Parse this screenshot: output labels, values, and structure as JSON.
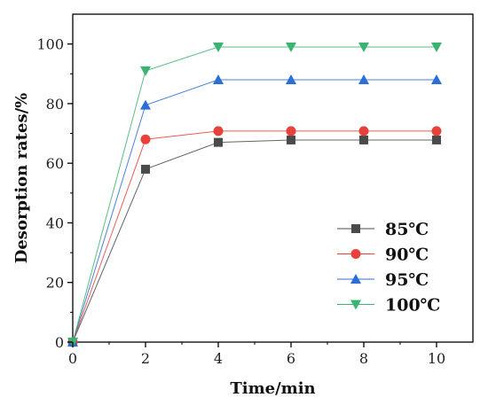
{
  "chart_data": {
    "type": "line",
    "title": "",
    "xlabel": "Time/min",
    "ylabel": "Desorption rates/%",
    "xlim": [
      0,
      11
    ],
    "ylim": [
      0,
      110
    ],
    "xticks": [
      0,
      2,
      4,
      6,
      8,
      10
    ],
    "yticks": [
      0,
      20,
      40,
      60,
      80,
      100
    ],
    "x": [
      0,
      2,
      4,
      6,
      8,
      10
    ],
    "grid": false,
    "legend_position": "bottom-right",
    "series": [
      {
        "name": "85℃",
        "values": [
          0,
          58,
          67,
          67.8,
          67.8,
          67.8
        ],
        "color": "#4a4a4a",
        "marker": "square"
      },
      {
        "name": "90℃",
        "values": [
          0,
          68,
          70.8,
          70.8,
          70.8,
          70.8
        ],
        "color": "#e8413c",
        "marker": "circle"
      },
      {
        "name": "95℃",
        "values": [
          0,
          79.5,
          88,
          88,
          88,
          88
        ],
        "color": "#2b6fd6",
        "marker": "triangle-up"
      },
      {
        "name": "100℃",
        "values": [
          0,
          91,
          99,
          99,
          99,
          99
        ],
        "color": "#3cb371",
        "marker": "triangle-down"
      }
    ]
  }
}
